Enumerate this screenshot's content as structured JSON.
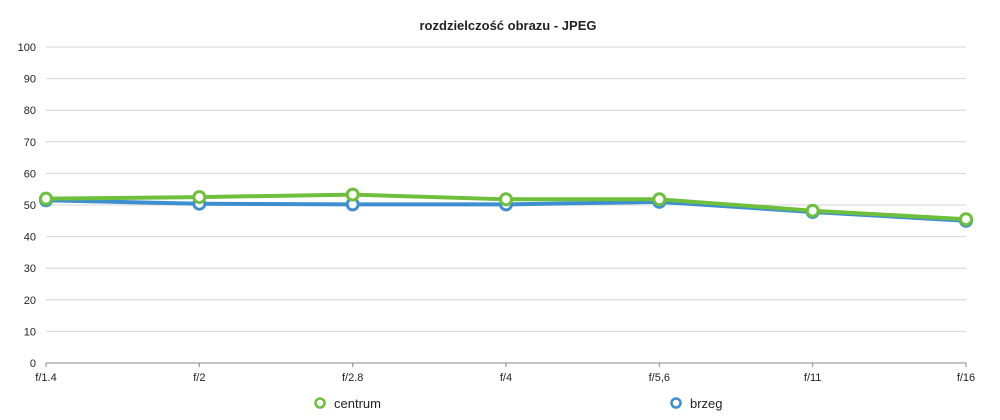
{
  "chart_data": {
    "type": "line",
    "title": "rozdzielczość obrazu - JPEG",
    "xlabel": "",
    "ylabel": "",
    "categories": [
      "f/1.4",
      "f/2",
      "f/2.8",
      "f/4",
      "f/5,6",
      "f/11",
      "f/16"
    ],
    "ylim": [
      0,
      100
    ],
    "yticks": [
      0,
      10,
      20,
      30,
      40,
      50,
      60,
      70,
      80,
      90,
      100
    ],
    "grid": true,
    "legend_position": "bottom",
    "series": [
      {
        "name": "centrum",
        "color": "#6ebf3b",
        "values": [
          52,
          52.5,
          53.3,
          51.8,
          51.8,
          48.2,
          45.5
        ]
      },
      {
        "name": "brzeg",
        "color": "#3d8fd1",
        "values": [
          51.5,
          50.4,
          50.2,
          50.2,
          51.0,
          47.8,
          45.0
        ]
      }
    ]
  }
}
